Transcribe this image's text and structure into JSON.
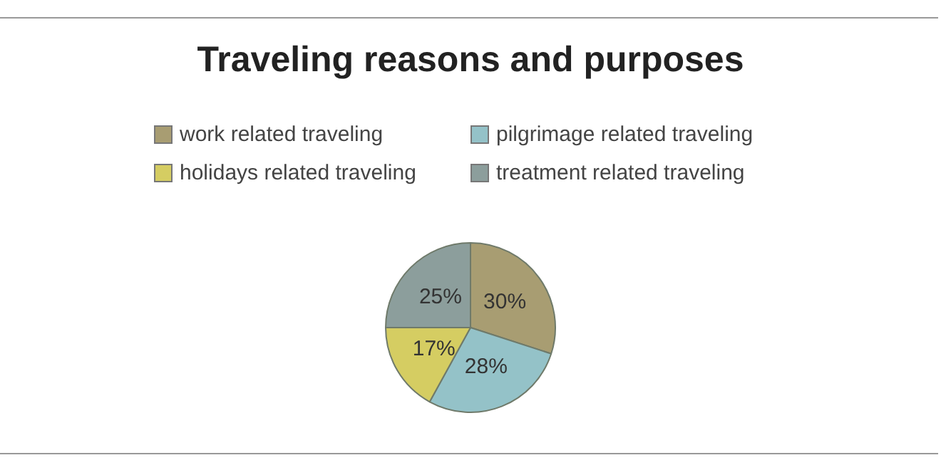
{
  "chart_data": {
    "type": "pie",
    "title": "Traveling reasons and purposes",
    "categories": [
      "work related traveling",
      "pilgrimage related traveling",
      "holidays related traveling",
      "treatment related traveling"
    ],
    "values": [
      30,
      28,
      17,
      25
    ],
    "colors": [
      "#a89d72",
      "#94c2c8",
      "#d5cd62",
      "#8c9e9c"
    ],
    "value_labels": [
      "30%",
      "28%",
      "17%",
      "25%"
    ],
    "legend": "top"
  }
}
